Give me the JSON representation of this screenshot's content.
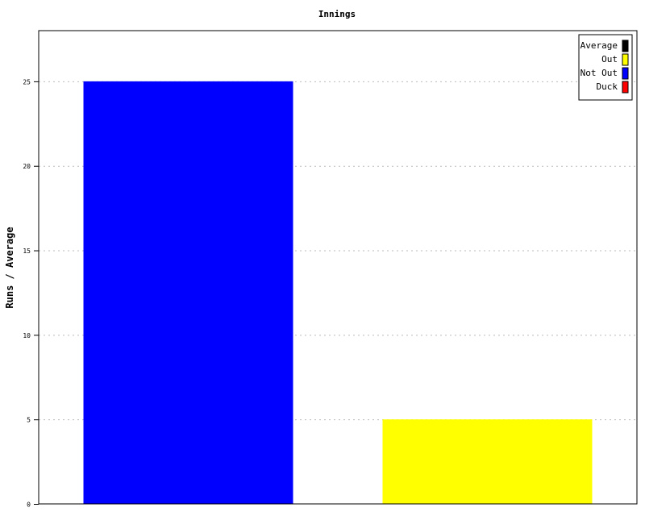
{
  "chart_data": {
    "type": "bar",
    "title": "Innings",
    "xlabel": "",
    "ylabel": "Runs / Average",
    "ylim": [
      0,
      28
    ],
    "yticks": [
      0,
      5,
      10,
      15,
      20,
      25
    ],
    "grid": true,
    "legend_placement": "top-right",
    "legend": [
      {
        "name": "Average",
        "color": "#000000"
      },
      {
        "name": "Out",
        "color": "#ffff00"
      },
      {
        "name": "Not Out",
        "color": "#0000ff"
      },
      {
        "name": "Duck",
        "color": "#ff0000"
      }
    ],
    "bars": [
      {
        "series": "Not Out",
        "value": 25,
        "color": "#0000ff"
      },
      {
        "series": "Out",
        "value": 5,
        "color": "#ffff00"
      }
    ]
  }
}
